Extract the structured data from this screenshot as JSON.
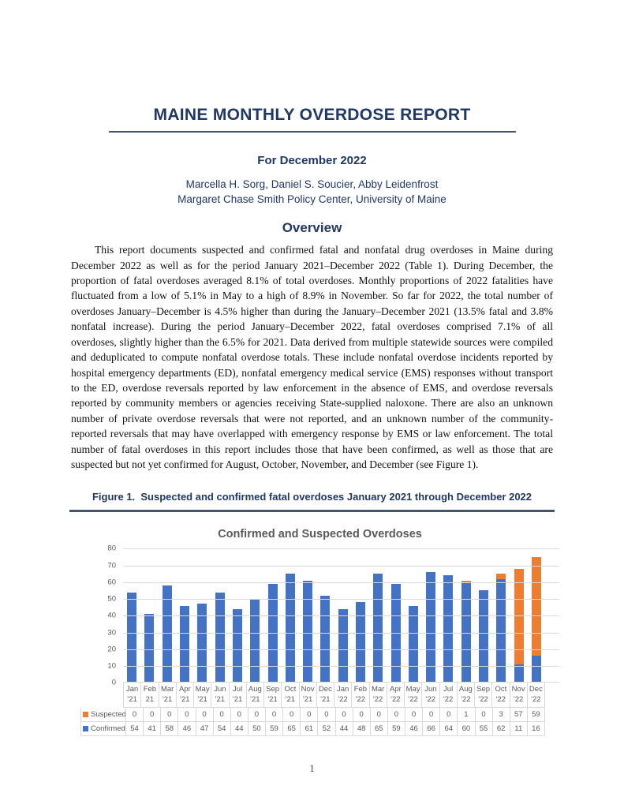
{
  "document": {
    "title": "MAINE MONTHLY OVERDOSE REPORT",
    "subtitle": "For December 2022",
    "authors": "Marcella H. Sorg, Daniel S. Soucier, Abby Leidenfrost",
    "affiliation": "Margaret Chase Smith Policy Center, University of Maine",
    "section_heading": "Overview",
    "overview_paragraph": "This report documents suspected and confirmed fatal and nonfatal drug overdoses in Maine during December 2022 as well as for the period January 2021–December 2022 (Table 1). During December, the proportion of fatal overdoses averaged 8.1% of total overdoses. Monthly proportions of 2022 fatalities have fluctuated from a low of 5.1% in May to a high of 8.9% in November. So far for 2022, the total number of overdoses January–December is 4.5% higher than during the January–December 2021 (13.5% fatal and 3.8% nonfatal increase). During the period January–December 2022, fatal overdoses comprised 7.1% of all overdoses, slightly higher than the 6.5% for 2021. Data derived from multiple statewide sources were compiled and deduplicated to compute nonfatal overdose totals. These include nonfatal overdose incidents reported by hospital emergency departments (ED), nonfatal emergency medical service (EMS) responses without transport to the ED, overdose reversals reported by law enforcement in the absence of EMS, and overdose reversals reported by community members or agencies receiving State-supplied naloxone. There are also an unknown number of private overdose reversals that were not reported, and an unknown number of the community-reported reversals that may have overlapped with emergency response by EMS or law enforcement. The total number of fatal overdoses in this report includes those that have been confirmed, as well as those that are suspected but not yet confirmed for August, October, November, and December (see Figure 1).",
    "figure_caption": "Figure 1.  Suspected and confirmed fatal overdoses January 2021 through December 2022",
    "page_number": "1"
  },
  "chart_data": {
    "type": "bar",
    "stacked": true,
    "title": "Confirmed and Suspected Overdoses",
    "categories": [
      "Jan '21",
      "Feb 21",
      "Mar '21",
      "Apr '21",
      "May '21",
      "Jun '21",
      "Jul '21",
      "Aug '21",
      "Sep '21",
      "Oct '21",
      "Nov '21",
      "Dec '21",
      "Jan '22",
      "Feb '22",
      "Mar '22",
      "Apr '22",
      "May '22",
      "Jun '22",
      "Jul '22",
      "Aug '22",
      "Sep '22",
      "Oct '22",
      "Nov '22",
      "Dec '22"
    ],
    "series": [
      {
        "name": "Suspected",
        "color": "#ED7D31",
        "values": [
          0,
          0,
          0,
          0,
          0,
          0,
          0,
          0,
          0,
          0,
          0,
          0,
          0,
          0,
          0,
          0,
          0,
          0,
          0,
          1,
          0,
          3,
          57,
          59
        ]
      },
      {
        "name": "Confirmed",
        "color": "#4472C4",
        "values": [
          54,
          41,
          58,
          46,
          47,
          54,
          44,
          50,
          59,
          65,
          61,
          52,
          44,
          48,
          65,
          59,
          46,
          66,
          64,
          60,
          55,
          62,
          11,
          16
        ]
      }
    ],
    "xlabel": "",
    "ylabel": "",
    "ylim": [
      0,
      80
    ],
    "ytick_step": 10,
    "grid": true,
    "legend_position": "data-table-left",
    "data_table_shown": true
  },
  "colors": {
    "heading_navy": "#1F3864",
    "rule_slate": "#44546A",
    "chart_text_gray": "#595959",
    "gridline_gray": "#D9D9D9",
    "suspected_orange": "#ED7D31",
    "confirmed_blue": "#4472C4"
  }
}
